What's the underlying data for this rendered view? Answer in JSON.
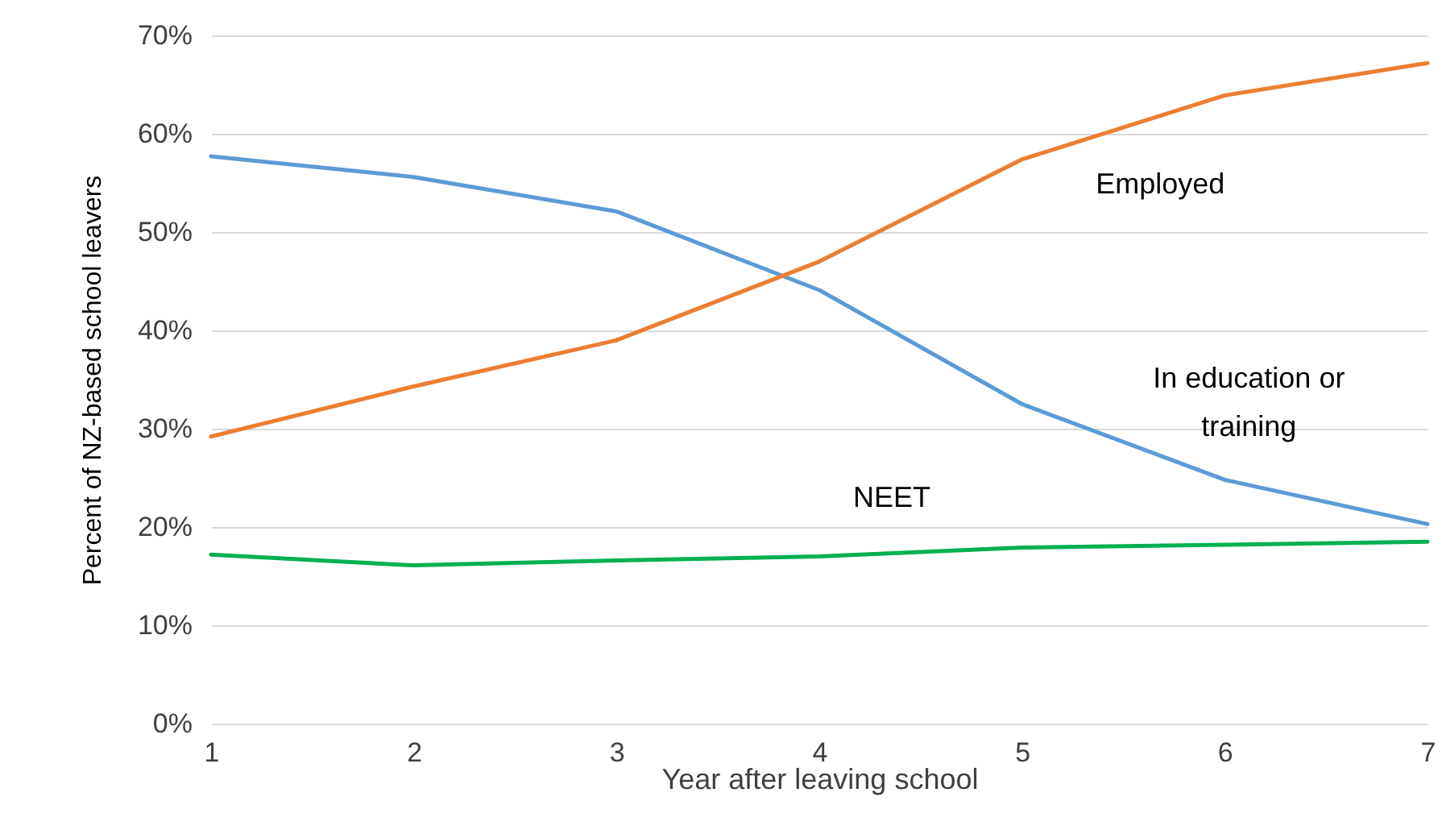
{
  "chart_data": {
    "type": "line",
    "xlabel": "Year after leaving school",
    "ylabel": "Percent of NZ-based school leavers",
    "x": [
      1,
      2,
      3,
      4,
      5,
      6,
      7
    ],
    "series": [
      {
        "name": "In education or\ntraining",
        "color": "#5b9bd5",
        "values": [
          57.7,
          55.6,
          52.1,
          44.1,
          32.5,
          24.8,
          20.3
        ]
      },
      {
        "name": "Employed",
        "color": "#ed7d31",
        "values": [
          29.2,
          34.3,
          39.0,
          47.0,
          57.4,
          63.9,
          67.2
        ]
      },
      {
        "name": "NEET",
        "color": "#00b050",
        "values": [
          17.2,
          16.1,
          16.6,
          17.0,
          17.9,
          18.2,
          18.5
        ]
      }
    ],
    "xlim": [
      1,
      7
    ],
    "xticks": [
      1,
      2,
      3,
      4,
      5,
      6,
      7
    ],
    "ylim": [
      0,
      70
    ],
    "yticks": [
      {
        "value": 0,
        "label": "0%"
      },
      {
        "value": 10,
        "label": "10%"
      },
      {
        "value": 20,
        "label": "20%"
      },
      {
        "value": 30,
        "label": "30%"
      },
      {
        "value": 40,
        "label": "40%"
      },
      {
        "value": 50,
        "label": "50%"
      },
      {
        "value": 60,
        "label": "60%"
      },
      {
        "value": 70,
        "label": "70%"
      }
    ],
    "grid": "y",
    "legend": false,
    "marker": "none",
    "line_style": "solid"
  }
}
